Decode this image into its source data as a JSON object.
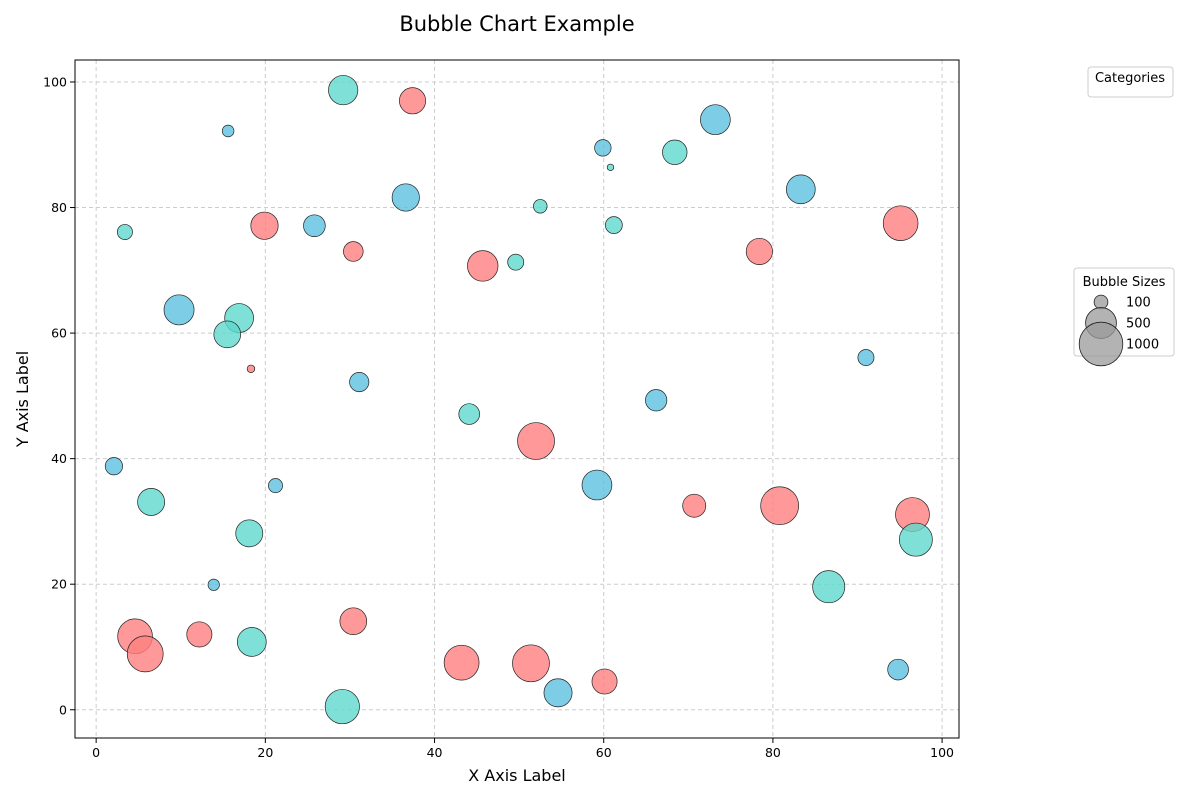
{
  "chart_data": {
    "type": "scatter",
    "title": "Bubble Chart Example",
    "xlabel": "X Axis Label",
    "ylabel": "Y Axis Label",
    "xlim": [
      -2.5,
      102
    ],
    "ylim": [
      -4.5,
      103.5
    ],
    "xticks": [
      0,
      20,
      40,
      60,
      80,
      100
    ],
    "yticks": [
      0,
      20,
      40,
      60,
      80,
      100
    ],
    "grid": true,
    "colors": {
      "red": "#ff7f7f",
      "blue": "#5bc0de",
      "teal": "#5ed8cc"
    },
    "legends": {
      "categories": {
        "title": "Categories",
        "placement": "upper-right"
      },
      "sizes": {
        "title": "Bubble Sizes",
        "placement": "right",
        "entries": [
          {
            "label": "100",
            "size": 100
          },
          {
            "label": "500",
            "size": 500
          },
          {
            "label": "1000",
            "size": 1000
          }
        ]
      }
    },
    "points": [
      {
        "x": 29.2,
        "y": 98.7,
        "size": 600,
        "c": "teal"
      },
      {
        "x": 37.4,
        "y": 97.0,
        "size": 480,
        "c": "red"
      },
      {
        "x": 15.6,
        "y": 92.2,
        "size": 95,
        "c": "blue"
      },
      {
        "x": 59.9,
        "y": 89.5,
        "size": 190,
        "c": "blue"
      },
      {
        "x": 60.8,
        "y": 86.4,
        "size": 30,
        "c": "teal"
      },
      {
        "x": 68.4,
        "y": 88.8,
        "size": 420,
        "c": "teal"
      },
      {
        "x": 73.2,
        "y": 94.0,
        "size": 620,
        "c": "blue"
      },
      {
        "x": 83.3,
        "y": 82.9,
        "size": 580,
        "c": "blue"
      },
      {
        "x": 36.6,
        "y": 81.6,
        "size": 520,
        "c": "blue"
      },
      {
        "x": 52.5,
        "y": 80.2,
        "size": 130,
        "c": "teal"
      },
      {
        "x": 95.1,
        "y": 77.5,
        "size": 840,
        "c": "red"
      },
      {
        "x": 3.4,
        "y": 76.1,
        "size": 160,
        "c": "teal"
      },
      {
        "x": 19.9,
        "y": 77.1,
        "size": 520,
        "c": "red"
      },
      {
        "x": 25.8,
        "y": 77.1,
        "size": 330,
        "c": "blue"
      },
      {
        "x": 61.2,
        "y": 77.2,
        "size": 200,
        "c": "teal"
      },
      {
        "x": 30.4,
        "y": 73.0,
        "size": 270,
        "c": "red"
      },
      {
        "x": 78.4,
        "y": 73.0,
        "size": 480,
        "c": "red"
      },
      {
        "x": 49.6,
        "y": 71.3,
        "size": 180,
        "c": "teal"
      },
      {
        "x": 45.7,
        "y": 70.7,
        "size": 650,
        "c": "red"
      },
      {
        "x": 9.8,
        "y": 63.7,
        "size": 630,
        "c": "blue"
      },
      {
        "x": 16.9,
        "y": 62.4,
        "size": 580,
        "c": "teal"
      },
      {
        "x": 15.5,
        "y": 59.8,
        "size": 500,
        "c": "teal"
      },
      {
        "x": 18.3,
        "y": 54.3,
        "size": 40,
        "c": "red"
      },
      {
        "x": 91.0,
        "y": 56.1,
        "size": 180,
        "c": "blue"
      },
      {
        "x": 31.1,
        "y": 52.2,
        "size": 260,
        "c": "blue"
      },
      {
        "x": 66.2,
        "y": 49.3,
        "size": 320,
        "c": "blue"
      },
      {
        "x": 44.1,
        "y": 47.1,
        "size": 300,
        "c": "teal"
      },
      {
        "x": 52.0,
        "y": 42.8,
        "size": 950,
        "c": "red"
      },
      {
        "x": 2.1,
        "y": 38.8,
        "size": 210,
        "c": "blue"
      },
      {
        "x": 21.2,
        "y": 35.7,
        "size": 140,
        "c": "blue"
      },
      {
        "x": 59.2,
        "y": 35.8,
        "size": 620,
        "c": "blue"
      },
      {
        "x": 6.5,
        "y": 33.1,
        "size": 510,
        "c": "teal"
      },
      {
        "x": 70.7,
        "y": 32.5,
        "size": 370,
        "c": "red"
      },
      {
        "x": 80.8,
        "y": 32.5,
        "size": 1000,
        "c": "red"
      },
      {
        "x": 96.5,
        "y": 31.1,
        "size": 800,
        "c": "red"
      },
      {
        "x": 96.9,
        "y": 27.1,
        "size": 760,
        "c": "teal"
      },
      {
        "x": 18.1,
        "y": 28.1,
        "size": 510,
        "c": "teal"
      },
      {
        "x": 86.6,
        "y": 19.6,
        "size": 720,
        "c": "teal"
      },
      {
        "x": 13.9,
        "y": 19.9,
        "size": 90,
        "c": "blue"
      },
      {
        "x": 30.4,
        "y": 14.1,
        "size": 500,
        "c": "red"
      },
      {
        "x": 4.6,
        "y": 11.7,
        "size": 840,
        "c": "red"
      },
      {
        "x": 12.2,
        "y": 12.0,
        "size": 440,
        "c": "red"
      },
      {
        "x": 18.4,
        "y": 10.8,
        "size": 580,
        "c": "teal"
      },
      {
        "x": 5.8,
        "y": 8.9,
        "size": 900,
        "c": "red"
      },
      {
        "x": 43.2,
        "y": 7.5,
        "size": 850,
        "c": "red"
      },
      {
        "x": 51.4,
        "y": 7.4,
        "size": 950,
        "c": "red"
      },
      {
        "x": 60.1,
        "y": 4.5,
        "size": 440,
        "c": "red"
      },
      {
        "x": 54.6,
        "y": 2.7,
        "size": 550,
        "c": "blue"
      },
      {
        "x": 94.8,
        "y": 6.4,
        "size": 300,
        "c": "blue"
      },
      {
        "x": 29.1,
        "y": 0.5,
        "size": 820,
        "c": "teal"
      }
    ]
  }
}
